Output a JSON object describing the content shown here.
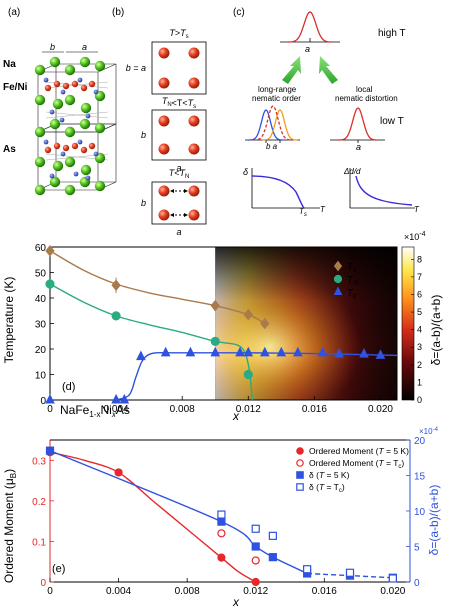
{
  "panels": {
    "a": {
      "label": "(a)",
      "lattice_labels": [
        "b",
        "a"
      ],
      "atoms": [
        {
          "name": "Na",
          "color": "#3a7d2a"
        },
        {
          "name": "Fe/Ni",
          "color": "#d8381b"
        },
        {
          "name": "As",
          "color": "#1f3f9a"
        }
      ]
    },
    "b": {
      "label": "(b)",
      "rows": [
        {
          "title_main": "T",
          "title_op": ">",
          "title_var": "T",
          "title_sub": "s",
          "side": "b = a",
          "bottom": ""
        },
        {
          "title_main": "T",
          "title_sub1": "N",
          "title_op": "<T<",
          "title_var": "T",
          "title_sub": "s",
          "side": "b",
          "bottom": "a"
        },
        {
          "title_main": "T",
          "title_op": "<",
          "title_var": "T",
          "title_sub": "N",
          "side": "b",
          "bottom": "a"
        }
      ]
    },
    "c": {
      "label": "(c)",
      "high_label": "high T",
      "low_label": "low T",
      "high_axis": "a",
      "left_title": [
        "long-range",
        "nematic order"
      ],
      "right_title": [
        "local",
        "nematic distortion"
      ],
      "left_axis": "b a",
      "right_axis": "a",
      "inset1_y": "δ",
      "inset1_x": "T",
      "inset1_tick": "T",
      "inset1_tick_sub": "s",
      "inset2_y": "Δd/d",
      "inset2_x": "T"
    }
  },
  "chart_data": [
    {
      "type": "line",
      "panel_label": "(d)",
      "compound_main": "NaFe",
      "compound_sub1": "1-x",
      "compound_mid": "Ni",
      "compound_sub2": "x",
      "compound_end": "As",
      "xlabel": "x",
      "ylabel": "Temperature (K)",
      "xlim": [
        0,
        0.021
      ],
      "ylim": [
        0,
        60
      ],
      "xticks": [
        "0",
        "0.004",
        "0.008",
        "0.012",
        "0.016",
        "0.020"
      ],
      "yticks": [
        "0",
        "10",
        "20",
        "30",
        "40",
        "50",
        "60"
      ],
      "heatmap": {
        "x_range": [
          0.01,
          0.021
        ],
        "colorbar_label": "δ=(a-b)/(a+b)",
        "colorbar_multiplier": "×10",
        "colorbar_exp": "-4",
        "colorbar_ticks": [
          "0",
          "1",
          "2",
          "3",
          "4",
          "5",
          "6",
          "7",
          "8"
        ],
        "colorbar_range": [
          0,
          8.7
        ]
      },
      "series": [
        {
          "name": "T",
          "sub": "s",
          "color": "#a97a4c",
          "marker": "diamond",
          "x": [
            0,
            0.004,
            0.01,
            0.012,
            0.013
          ],
          "y": [
            58.5,
            45,
            37,
            33.5,
            30
          ],
          "curve_x": [
            0,
            0.002,
            0.004,
            0.006,
            0.008,
            0.01,
            0.012,
            0.013
          ],
          "curve_y": [
            58.5,
            51,
            45.5,
            42,
            39.5,
            37,
            33.5,
            30
          ]
        },
        {
          "name": "T",
          "sub": "N",
          "color": "#2bab82",
          "marker": "circle",
          "x": [
            0,
            0.004,
            0.01,
            0.012
          ],
          "y": [
            45.5,
            33,
            23,
            10
          ],
          "curve_x": [
            0,
            0.002,
            0.004,
            0.006,
            0.008,
            0.01,
            0.0115,
            0.012,
            0.01225
          ],
          "curve_y": [
            45.5,
            38.5,
            33,
            29.5,
            26.5,
            23,
            21,
            14,
            0
          ]
        },
        {
          "name": "T",
          "sub": "c",
          "color": "#2f52e0",
          "marker": "triangle",
          "x": [
            0.0045,
            0.0055,
            0.007,
            0.0085,
            0.01,
            0.0115,
            0.012,
            0.013,
            0.014,
            0.015,
            0.0165,
            0.0175,
            0.019,
            0.02
          ],
          "y": [
            0,
            17,
            18.5,
            18.5,
            18.5,
            18.5,
            18.5,
            18.5,
            18.5,
            18.5,
            18.5,
            18,
            18,
            17.5
          ],
          "curve_x": [
            0.004,
            0.0048,
            0.0052,
            0.0056,
            0.0062,
            0.0075,
            0.01,
            0.012,
            0.015,
            0.0175,
            0.021
          ],
          "curve_y": [
            0,
            2,
            9,
            15.5,
            18.3,
            18.5,
            18.5,
            18.5,
            18.3,
            18,
            17.5
          ]
        },
        {
          "name": "zero",
          "color": "#2f52e0",
          "marker": "triangle",
          "legend": false,
          "x": [
            0,
            0.004
          ],
          "y": [
            0,
            0
          ]
        }
      ]
    },
    {
      "type": "line",
      "panel_label": "(e)",
      "xlabel": "x",
      "ylabel": "Ordered Moment (μ",
      "ylabel_sub": "B",
      "ylabel_end": ")",
      "y2label": "δ=(a-b)/(a+b)",
      "y2_multiplier": "×10",
      "y2_exp": "-4",
      "xlim": [
        0,
        0.021
      ],
      "ylim": [
        0,
        0.35
      ],
      "y2lim": [
        0,
        20
      ],
      "xticks": [
        "0",
        "0.004",
        "0.008",
        "0.012",
        "0.016",
        "0.020"
      ],
      "yticks": [
        "0",
        "0.1",
        "0.2",
        "0.3"
      ],
      "y2ticks": [
        "0",
        "5",
        "10",
        "15",
        "20"
      ],
      "legend": [
        {
          "text": "Ordered Moment (",
          "var": "T",
          "tail": " = 5 K)",
          "sub": "",
          "color": "#e8262b",
          "marker": "circle",
          "filled": true
        },
        {
          "text": "Ordered Moment (",
          "var": "T",
          "tail": " = T",
          "sub": "c",
          "color": "#e8262b",
          "marker": "circle",
          "filled": false
        },
        {
          "text": "δ  (",
          "var": "T",
          "tail": " = 5 K)",
          "sub": "",
          "color": "#2f52e0",
          "marker": "square",
          "filled": true
        },
        {
          "text": "δ  (",
          "var": "T",
          "tail": " = T",
          "sub": "c",
          "color": "#2f52e0",
          "marker": "square",
          "filled": false
        }
      ],
      "series": [
        {
          "name": "Ordered Moment (T = 5 K)",
          "axis": "left",
          "color": "#e8262b",
          "marker": "circle",
          "filled": true,
          "x": [
            0,
            0.004,
            0.01,
            0.012
          ],
          "y": [
            0.32,
            0.27,
            0.06,
            0
          ]
        },
        {
          "name": "Ordered Moment (T = Tc)",
          "axis": "left",
          "color": "#e8262b",
          "marker": "circle",
          "filled": false,
          "x": [
            0.01,
            0.012
          ],
          "y": [
            0.12,
            0.053
          ]
        },
        {
          "name": "δ (T = 5 K)",
          "axis": "right",
          "color": "#2f52e0",
          "marker": "square",
          "filled": true,
          "x": [
            0,
            0.01,
            0.012,
            0.013,
            0.015,
            0.0175,
            0.02
          ],
          "y": [
            18.5,
            8.5,
            5,
            3.5,
            1.2,
            0.9,
            0.6
          ]
        },
        {
          "name": "δ (T = Tc)",
          "axis": "right",
          "color": "#2f52e0",
          "marker": "square",
          "filled": false,
          "x": [
            0.01,
            0.012,
            0.013,
            0.015,
            0.0175,
            0.02
          ],
          "y": [
            9.5,
            7.5,
            6.5,
            1.8,
            1.3,
            0.5
          ]
        }
      ],
      "curves": [
        {
          "axis": "left",
          "color": "#e8262b",
          "dash": false,
          "x": [
            0,
            0.002,
            0.004,
            0.006,
            0.008,
            0.01,
            0.011,
            0.012
          ],
          "y": [
            0.32,
            0.3,
            0.27,
            0.2,
            0.13,
            0.06,
            0.025,
            0
          ]
        },
        {
          "axis": "right",
          "color": "#2f52e0",
          "dash": false,
          "x": [
            0,
            0.01,
            0.012,
            0.013,
            0.015
          ],
          "y": [
            18.5,
            8.5,
            5,
            3.5,
            1.2
          ]
        },
        {
          "axis": "right",
          "color": "#2f52e0",
          "dash": true,
          "x": [
            0.015,
            0.0175,
            0.02
          ],
          "y": [
            1.2,
            0.9,
            0.6
          ]
        }
      ]
    }
  ]
}
